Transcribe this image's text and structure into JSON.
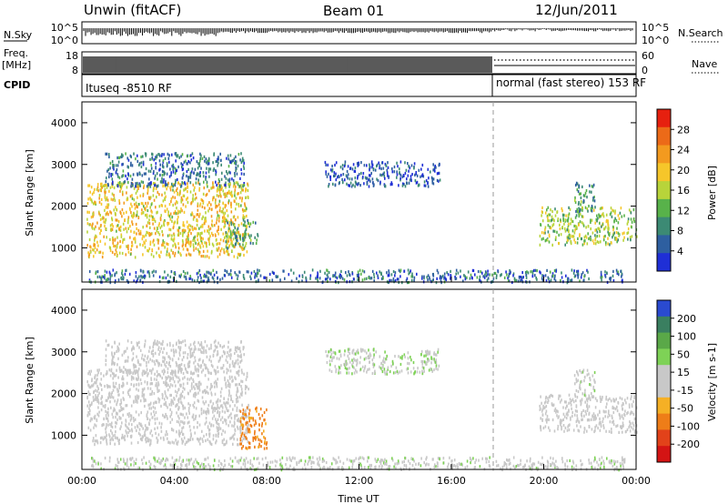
{
  "header": {
    "radar": "Unwin (fitACF)",
    "beam": "Beam 01",
    "date": "12/Jun/2011"
  },
  "colors": {
    "power_scale": [
      "#1f2fd6",
      "#2e5fa0",
      "#3c8a74",
      "#58b24a",
      "#b8d43a",
      "#f6c62a",
      "#f39a1f",
      "#ec6a18",
      "#e6200f"
    ],
    "velocity_scale": [
      "#2a4ad0",
      "#3a7f60",
      "#5aa848",
      "#7ed256",
      "#c8c8c8",
      "#c8c8c8",
      "#f5b025",
      "#ee7d18",
      "#e2421a",
      "#d41414"
    ],
    "ground_scatter": "#b4b4b4"
  },
  "panel_sky": {
    "left_label": "N.Sky",
    "left_ticks": [
      "10^5",
      "10^0"
    ],
    "right_ticks": [
      "10^5",
      "10^0"
    ],
    "right_label": "N.Search"
  },
  "panel_freq": {
    "left_label_1": "Freq.",
    "left_label_2": "[MHz]",
    "left_ticks": [
      "18",
      "8"
    ],
    "right_ticks": [
      "60",
      "0"
    ],
    "right_label": "Nave"
  },
  "panel_cpid": {
    "label": "CPID",
    "segment_1": "Ituseq -8510 RF",
    "segment_2": "normal (fast stereo) 153 RF"
  },
  "chart_data": [
    {
      "type": "heatmap",
      "name": "power",
      "xlabel": "Time UT",
      "ylabel": "Slant Range [km]",
      "x_ticks": [
        "00:00",
        "04:00",
        "08:00",
        "12:00",
        "16:00",
        "20:00",
        "00:00"
      ],
      "x_range_hours": [
        0,
        24
      ],
      "ylim": [
        180,
        4500
      ],
      "y_ticks": [
        1000,
        2000,
        3000,
        4000
      ],
      "colorbar_label": "Power [dB]",
      "colorbar_ticks": [
        "28",
        "24",
        "20",
        "16",
        "12",
        "8",
        "4"
      ],
      "colorbar_range": [
        0,
        30
      ],
      "regions": [
        {
          "t0": 0.2,
          "t1": 7.2,
          "r0": 800,
          "r1": 2600,
          "level": 18
        },
        {
          "t0": 1.0,
          "t1": 7.0,
          "r0": 2500,
          "r1": 3300,
          "level": 6
        },
        {
          "t0": 6.2,
          "t1": 7.6,
          "r0": 1000,
          "r1": 1700,
          "level": 10
        },
        {
          "t0": 10.5,
          "t1": 15.5,
          "r0": 2500,
          "r1": 3100,
          "level": 4
        },
        {
          "t0": 19.8,
          "t1": 24.0,
          "r0": 1100,
          "r1": 2000,
          "level": 14
        },
        {
          "t0": 21.3,
          "t1": 22.2,
          "r0": 1900,
          "r1": 2600,
          "level": 9
        },
        {
          "t0": 0.3,
          "t1": 23.5,
          "r0": 200,
          "r1": 500,
          "level": 6
        }
      ],
      "vertical_marker_hour": 18
    },
    {
      "type": "heatmap",
      "name": "velocity",
      "xlabel": "Time UT",
      "ylabel": "Slant Range [km]",
      "x_ticks": [
        "00:00",
        "04:00",
        "08:00",
        "12:00",
        "16:00",
        "20:00",
        "00:00"
      ],
      "x_range_hours": [
        0,
        24
      ],
      "ylim": [
        180,
        4500
      ],
      "y_ticks": [
        1000,
        2000,
        3000,
        4000
      ],
      "colorbar_label": "Velocity [m s-1]",
      "colorbar_ticks": [
        "200",
        "100",
        "50",
        "15",
        "-15",
        "-50",
        "-100",
        "-200"
      ],
      "colorbar_range": [
        -250,
        250
      ],
      "regions": [
        {
          "t0": 0.2,
          "t1": 7.2,
          "r0": 800,
          "r1": 2600,
          "level": 0
        },
        {
          "t0": 1.0,
          "t1": 7.0,
          "r0": 2500,
          "r1": 3300,
          "level": 10
        },
        {
          "t0": 6.8,
          "t1": 8.0,
          "r0": 700,
          "r1": 1700,
          "level": -120
        },
        {
          "t0": 10.5,
          "t1": 15.5,
          "r0": 2500,
          "r1": 3100,
          "level": 40
        },
        {
          "t0": 19.8,
          "t1": 24.0,
          "r0": 1100,
          "r1": 2000,
          "level": 0
        },
        {
          "t0": 21.3,
          "t1": 22.2,
          "r0": 1900,
          "r1": 2600,
          "level": 30
        },
        {
          "t0": 0.3,
          "t1": 23.5,
          "r0": 200,
          "r1": 500,
          "level": 30
        }
      ],
      "vertical_marker_hour": 18
    }
  ]
}
